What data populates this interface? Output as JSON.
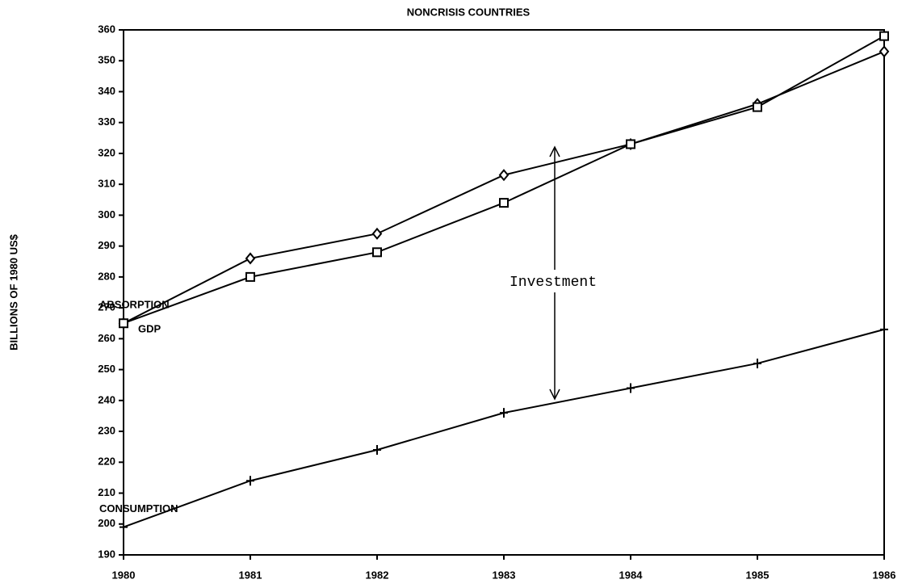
{
  "chart_data": {
    "type": "line",
    "title": "NONCRISIS COUNTRIES",
    "y_label": "BILLIONS OF 1980 US$",
    "annotation": "Investment",
    "x": [
      1980,
      1981,
      1982,
      1983,
      1984,
      1985,
      1986
    ],
    "xlim": [
      1980,
      1986
    ],
    "xticks": [
      1980,
      1981,
      1982,
      1983,
      1984,
      1985,
      1986
    ],
    "ylim": [
      190,
      360
    ],
    "yticks": [
      190,
      200,
      210,
      220,
      230,
      240,
      250,
      260,
      270,
      280,
      290,
      300,
      310,
      320,
      330,
      340,
      350,
      360
    ],
    "series": [
      {
        "name": "ABSORPTION",
        "color": "#000000",
        "marker": "diamond",
        "values": [
          265,
          286,
          294,
          313,
          323,
          336,
          353
        ]
      },
      {
        "name": "GDP",
        "color": "#000000",
        "marker": "square",
        "values": [
          265,
          280,
          288,
          304,
          323,
          335,
          358
        ]
      },
      {
        "name": "CONSUMPTION",
        "color": "#000000",
        "marker": "plus",
        "values": [
          199,
          214,
          224,
          236,
          244,
          252,
          263
        ]
      }
    ]
  }
}
